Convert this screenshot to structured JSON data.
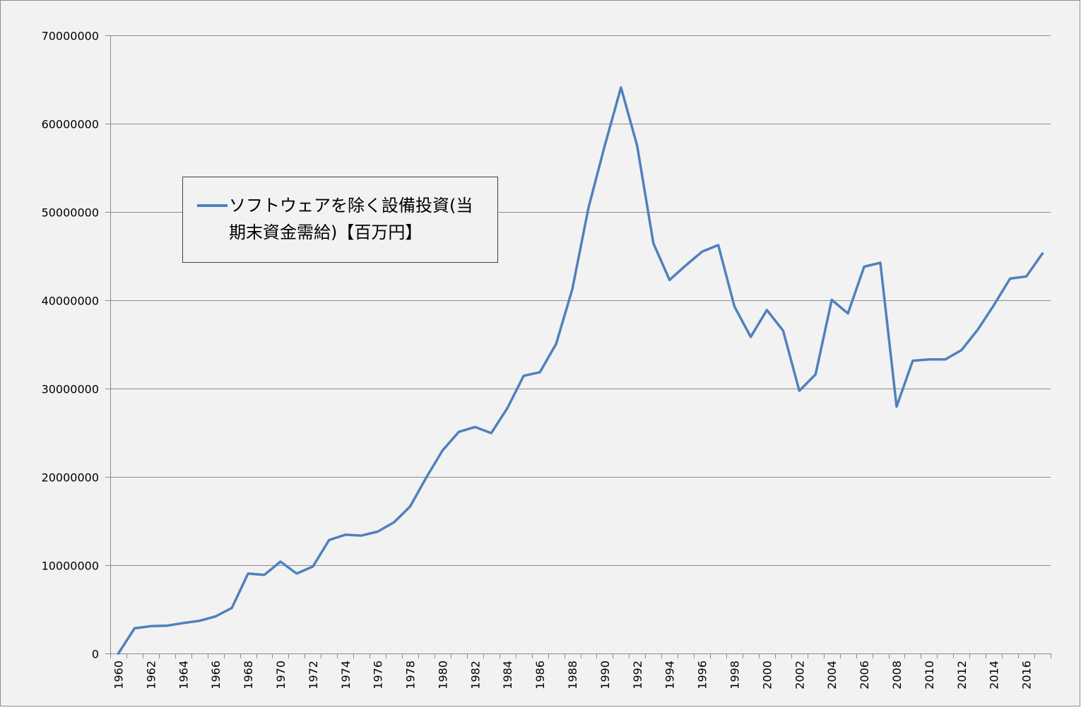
{
  "chart_data": {
    "type": "line",
    "title": "",
    "xlabel": "",
    "ylabel": "",
    "ylim": [
      0,
      70000000
    ],
    "yticks": [
      0,
      10000000,
      20000000,
      30000000,
      40000000,
      50000000,
      60000000,
      70000000
    ],
    "grid": true,
    "legend": {
      "position": "upper-left inside plot",
      "lines": [
        "ソフトウェアを除く設備投資(当",
        "期末資金需給)【百万円】"
      ]
    },
    "x": [
      1960,
      1961,
      1962,
      1963,
      1964,
      1965,
      1966,
      1967,
      1968,
      1969,
      1970,
      1971,
      1972,
      1973,
      1974,
      1975,
      1976,
      1977,
      1978,
      1979,
      1980,
      1981,
      1982,
      1983,
      1984,
      1985,
      1986,
      1987,
      1988,
      1989,
      1990,
      1991,
      1992,
      1993,
      1994,
      1995,
      1996,
      1997,
      1998,
      1999,
      2000,
      2001,
      2002,
      2003,
      2004,
      2005,
      2006,
      2007,
      2008,
      2009,
      2010,
      2011,
      2012,
      2013,
      2014,
      2015,
      2016,
      2017
    ],
    "x_tick_labels": [
      "1960",
      "1962",
      "1964",
      "1966",
      "1968",
      "1970",
      "1972",
      "1974",
      "1976",
      "1978",
      "1980",
      "1982",
      "1984",
      "1986",
      "1988",
      "1990",
      "1992",
      "1994",
      "1996",
      "1998",
      "2000",
      "2002",
      "2004",
      "2006",
      "2008",
      "2010",
      "2012",
      "2014",
      "2016"
    ],
    "series": [
      {
        "name": "ソフトウェアを除く設備投資(当期末資金需給)【百万円】",
        "color": "#4f81bd",
        "values": [
          0,
          2850000,
          3100000,
          3150000,
          3450000,
          3700000,
          4200000,
          5150000,
          9050000,
          8900000,
          10400000,
          9050000,
          9850000,
          12850000,
          13450000,
          13350000,
          13800000,
          14850000,
          16650000,
          19950000,
          23000000,
          25100000,
          25650000,
          24950000,
          27800000,
          31450000,
          31850000,
          35050000,
          41250000,
          50500000,
          57500000,
          64100000,
          57500000,
          46450000,
          42300000,
          43950000,
          45500000,
          46250000,
          39300000,
          35850000,
          38900000,
          36550000,
          29750000,
          31600000,
          40050000,
          38500000,
          43800000,
          44250000,
          27950000,
          33150000,
          33300000,
          33300000,
          34350000,
          36650000,
          39450000,
          42450000,
          42700000,
          45300000
        ]
      }
    ]
  }
}
